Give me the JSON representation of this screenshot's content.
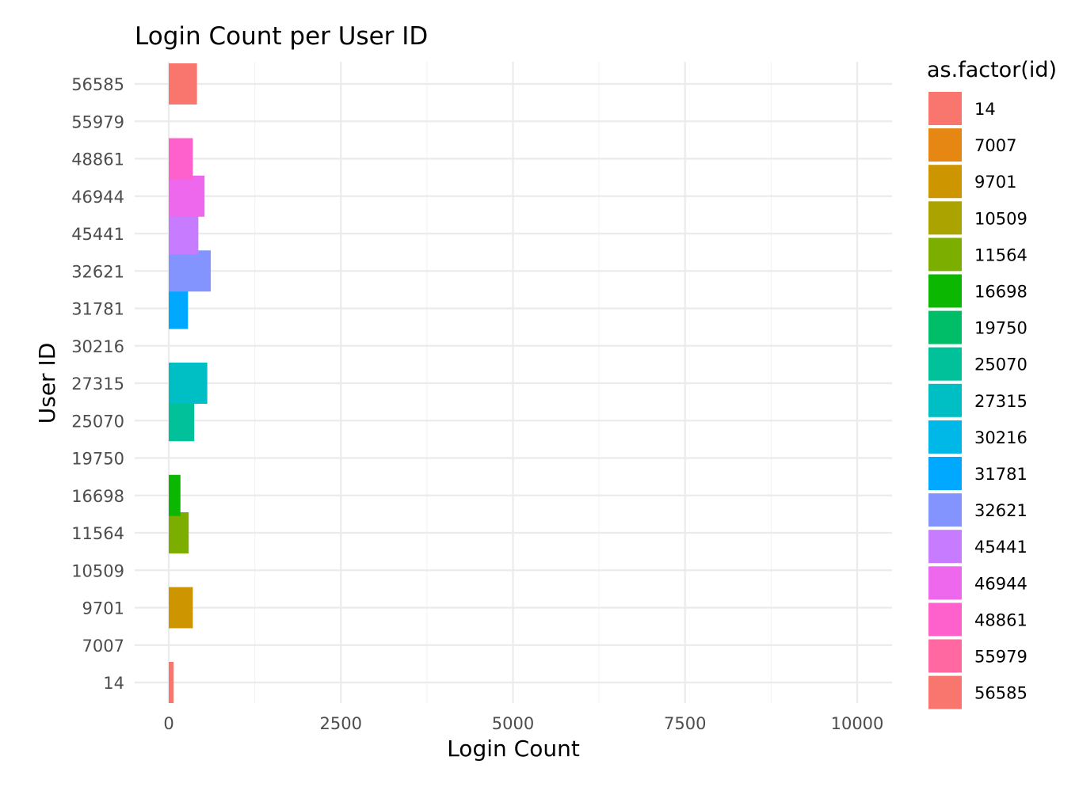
{
  "chart_data": {
    "type": "bar",
    "orientation": "horizontal",
    "title": "Login Count per User ID",
    "xlabel": "Login Count",
    "ylabel": "User ID",
    "xlim": [
      -100,
      10500
    ],
    "x_ticks": [
      0,
      2500,
      5000,
      7500,
      10000
    ],
    "x_tick_labels": [
      "0",
      "2500",
      "5000",
      "7500",
      "10000"
    ],
    "categories": [
      "14",
      "7007",
      "9701",
      "10509",
      "11564",
      "16698",
      "19750",
      "25070",
      "27315",
      "30216",
      "31781",
      "32621",
      "45441",
      "46944",
      "48861",
      "55979",
      "56585"
    ],
    "values": [
      70,
      0,
      350,
      0,
      290,
      170,
      0,
      370,
      560,
      0,
      280,
      610,
      430,
      520,
      350,
      0,
      410
    ],
    "colors": [
      "#F8766D",
      "#E68613",
      "#CD9600",
      "#ABA300",
      "#7CAE00",
      "#0CB702",
      "#00BE67",
      "#00C19A",
      "#00BFC4",
      "#00B8E7",
      "#00A9FF",
      "#8494FF",
      "#C77CFF",
      "#ED68ED",
      "#FF61CC",
      "#FF68A1",
      "#F8766D"
    ],
    "legend_title": "as.factor(id)",
    "legend_position": "right",
    "grid": true
  }
}
